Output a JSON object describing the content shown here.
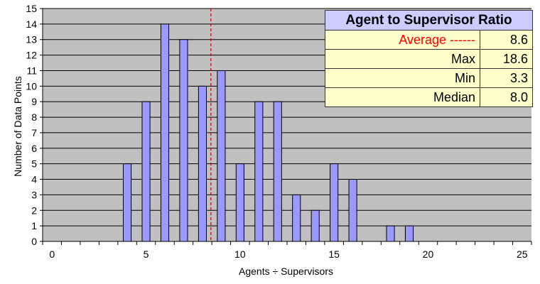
{
  "chart_data": {
    "type": "bar",
    "title": "",
    "xlabel": "Agents ÷ Supervisors",
    "ylabel": "Number of Data Points",
    "categories": [
      0,
      1,
      2,
      3,
      4,
      5,
      6,
      7,
      8,
      9,
      10,
      11,
      12,
      13,
      14,
      15,
      16,
      17,
      18,
      19,
      20,
      21,
      22,
      23,
      24,
      25
    ],
    "values": [
      0,
      0,
      0,
      0,
      5,
      9,
      14,
      13,
      10,
      11,
      5,
      9,
      9,
      3,
      2,
      5,
      4,
      0,
      1,
      1,
      0,
      0,
      0,
      0,
      0,
      0
    ],
    "x_tick_labels": [
      "0",
      "5",
      "10",
      "15",
      "20",
      "25"
    ],
    "ylim": [
      0,
      15
    ],
    "y_ticks": [
      0,
      1,
      2,
      3,
      4,
      5,
      6,
      7,
      8,
      9,
      10,
      11,
      12,
      13,
      14,
      15
    ],
    "grid": "horizontal",
    "average_line": 8.6,
    "colors": {
      "bar": "#9999ff",
      "plot_bg": "#c0c0c0",
      "average_line": "#cc0000",
      "table_header": "#ccccff",
      "table_body": "#ffffcc"
    }
  },
  "stats_table": {
    "title": "Agent to Supervisor Ratio",
    "rows": [
      {
        "label": "Average ------",
        "value": "8.6"
      },
      {
        "label": "Max",
        "value": "18.6"
      },
      {
        "label": "Min",
        "value": "3.3"
      },
      {
        "label": "Median",
        "value": "8.0"
      }
    ]
  }
}
